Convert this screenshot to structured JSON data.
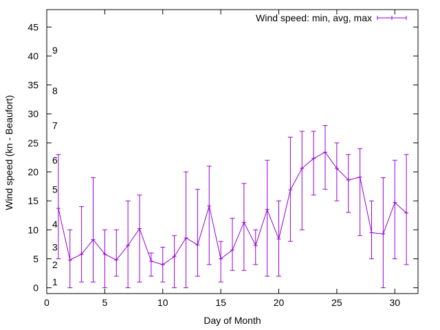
{
  "chart_data": {
    "type": "line",
    "title": "",
    "xlabel": "Day of Month",
    "ylabel": "Wind speed (kn - Beaufort)",
    "xlim": [
      0,
      32
    ],
    "ylim": [
      -1,
      48
    ],
    "x_ticks": [
      0,
      5,
      10,
      15,
      20,
      25,
      30
    ],
    "y_ticks": [
      0,
      5,
      10,
      15,
      20,
      25,
      30,
      35,
      40,
      45
    ],
    "beaufort_labels": [
      {
        "label": "1",
        "value": 1
      },
      {
        "label": "2",
        "value": 4
      },
      {
        "label": "3",
        "value": 7
      },
      {
        "label": "4",
        "value": 11
      },
      {
        "label": "5",
        "value": 17
      },
      {
        "label": "6",
        "value": 22
      },
      {
        "label": "7",
        "value": 28
      },
      {
        "label": "8",
        "value": 34
      },
      {
        "label": "9",
        "value": 41
      }
    ],
    "grid": false,
    "legend_position": "top-right",
    "series": [
      {
        "name": "Wind speed: min, avg, max",
        "color": "#9400d3",
        "x": [
          1,
          2,
          3,
          4,
          5,
          6,
          7,
          8,
          9,
          10,
          11,
          12,
          13,
          14,
          15,
          16,
          17,
          18,
          19,
          20,
          21,
          22,
          23,
          24,
          25,
          26,
          27,
          28,
          29,
          30,
          31
        ],
        "avg": [
          13.7,
          4.8,
          5.8,
          8.3,
          5.8,
          4.8,
          7.3,
          10.2,
          4.6,
          4.0,
          5.4,
          8.6,
          7.4,
          14.1,
          5.0,
          6.5,
          11.3,
          7.3,
          13.5,
          8.4,
          16.9,
          20.6,
          22.3,
          23.4,
          20.6,
          18.6,
          19.1,
          9.5,
          9.3,
          14.7,
          12.9
        ],
        "min": [
          5,
          0,
          1,
          1,
          0,
          2,
          0,
          1,
          2,
          1,
          0,
          0,
          2,
          4,
          1,
          3,
          3,
          4,
          2,
          2,
          8,
          10,
          16,
          17,
          15,
          13,
          9,
          5,
          0,
          5,
          4
        ],
        "max": [
          23,
          10,
          14,
          19,
          10,
          10,
          15,
          16,
          6,
          7,
          9,
          20,
          17,
          21,
          8,
          12,
          18,
          10,
          22,
          15,
          26,
          27,
          27,
          28,
          25,
          23,
          24,
          15,
          19,
          22,
          23
        ]
      }
    ]
  }
}
